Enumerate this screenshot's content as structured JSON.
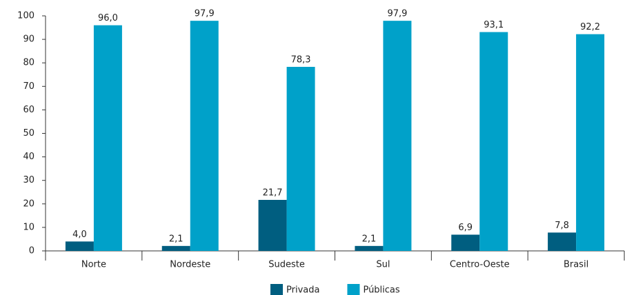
{
  "chart_data": {
    "type": "bar",
    "categories": [
      "Norte",
      "Nordeste",
      "Sudeste",
      "Sul",
      "Centro-Oeste",
      "Brasil"
    ],
    "series": [
      {
        "name": "Privada",
        "color": "#005e80",
        "values": [
          4.0,
          2.1,
          21.7,
          2.1,
          6.9,
          7.8
        ],
        "value_labels": [
          "4,0",
          "2,1",
          "21,7",
          "2,1",
          "6,9",
          "7,8"
        ]
      },
      {
        "name": "Públicas",
        "color": "#00a1c9",
        "values": [
          96.0,
          97.9,
          78.3,
          97.9,
          93.1,
          92.2
        ],
        "value_labels": [
          "96,0",
          "97,9",
          "78,3",
          "97,9",
          "93,1",
          "92,2"
        ]
      }
    ],
    "ylim": [
      0,
      100
    ],
    "yticks": [
      0,
      10,
      20,
      30,
      40,
      50,
      60,
      70,
      80,
      90,
      100
    ],
    "grid": false,
    "legend": "bottom"
  }
}
